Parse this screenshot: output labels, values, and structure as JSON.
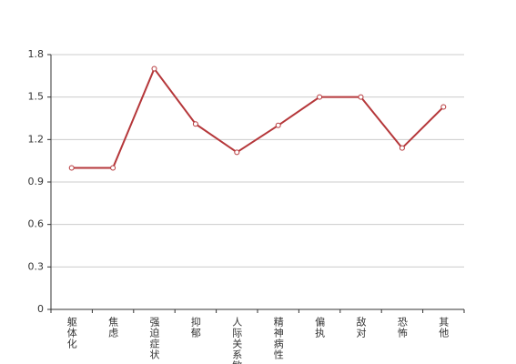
{
  "chart_data": {
    "type": "line",
    "categories": [
      "躯体化",
      "焦虑",
      "强迫症状",
      "抑郁",
      "人际关系敏感",
      "精神病性",
      "偏执",
      "敌对",
      "恐怖",
      "其他"
    ],
    "values": [
      1.0,
      1.0,
      1.7,
      1.31,
      1.11,
      1.3,
      1.5,
      1.5,
      1.14,
      1.43
    ],
    "color": "#b5373a",
    "ylim": [
      0,
      1.8
    ],
    "yticks": [
      0,
      0.3,
      0.6,
      0.9,
      1.2,
      1.5,
      1.8
    ],
    "grid": true
  }
}
